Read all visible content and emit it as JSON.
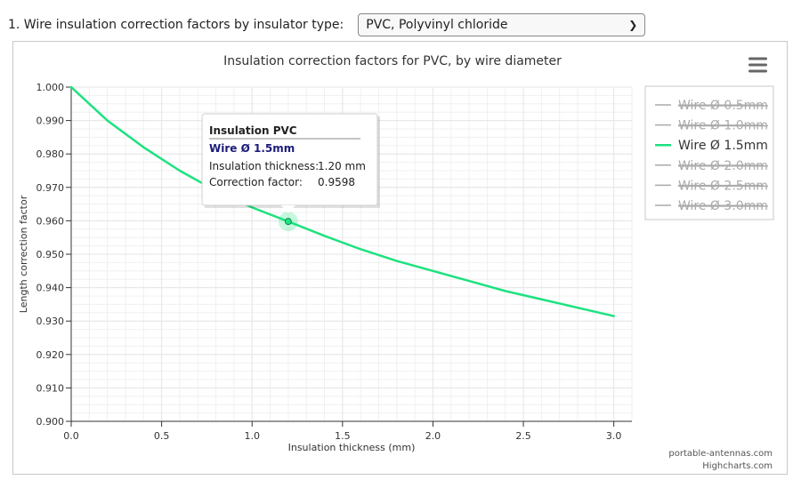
{
  "selector": {
    "label": "1. Wire insulation correction factors by insulator type:",
    "value": "PVC, Polyvinyl chloride"
  },
  "menu_icon": "hamburger-menu-icon",
  "credits": [
    "portable-antennas.com",
    "Highcharts.com"
  ],
  "colors": {
    "active": "#1de27f",
    "inactive": "#aaaaaa",
    "grid": "#e6e6e6",
    "tooltip_series": "#1b1b7a"
  },
  "chart_data": {
    "type": "line",
    "title": "Insulation correction factors for PVC, by wire diameter",
    "xlabel": "Insulation thickness (mm)",
    "ylabel": "Length correction factor",
    "xlim": [
      0,
      3.1
    ],
    "ylim": [
      0.9,
      1.0
    ],
    "x_ticks": [
      "0.0",
      "0.5",
      "1.0",
      "1.5",
      "2.0",
      "2.5",
      "3.0"
    ],
    "y_ticks": [
      "0.900",
      "0.910",
      "0.920",
      "0.930",
      "0.940",
      "0.950",
      "0.960",
      "0.970",
      "0.980",
      "0.990",
      "1.000"
    ],
    "grid": true,
    "legend_position": "right",
    "series": [
      {
        "name": "Wire Ø 0.5mm",
        "visible": false
      },
      {
        "name": "Wire Ø 1.0mm",
        "visible": false
      },
      {
        "name": "Wire Ø 1.5mm",
        "visible": true,
        "x": [
          0,
          0.2,
          0.4,
          0.6,
          0.8,
          1.0,
          1.2,
          1.4,
          1.6,
          1.8,
          2.0,
          2.2,
          2.4,
          2.6,
          2.8,
          3.0
        ],
        "y": [
          1.0,
          0.99,
          0.982,
          0.975,
          0.969,
          0.964,
          0.9598,
          0.9555,
          0.9515,
          0.948,
          0.945,
          0.942,
          0.939,
          0.9365,
          0.934,
          0.9315
        ]
      },
      {
        "name": "Wire Ø 2.0mm",
        "visible": false
      },
      {
        "name": "Wire Ø 2.5mm",
        "visible": false
      },
      {
        "name": "Wire Ø 3.0mm",
        "visible": false
      }
    ],
    "tooltip": {
      "header": "Insulation PVC",
      "series_label": "Wire Ø 1.5mm",
      "x_label": "Insulation thickness:",
      "x_value": "1.20 mm",
      "y_label": "Correction factor:",
      "y_value": "0.9598",
      "point": [
        1.2,
        0.9598
      ]
    }
  }
}
